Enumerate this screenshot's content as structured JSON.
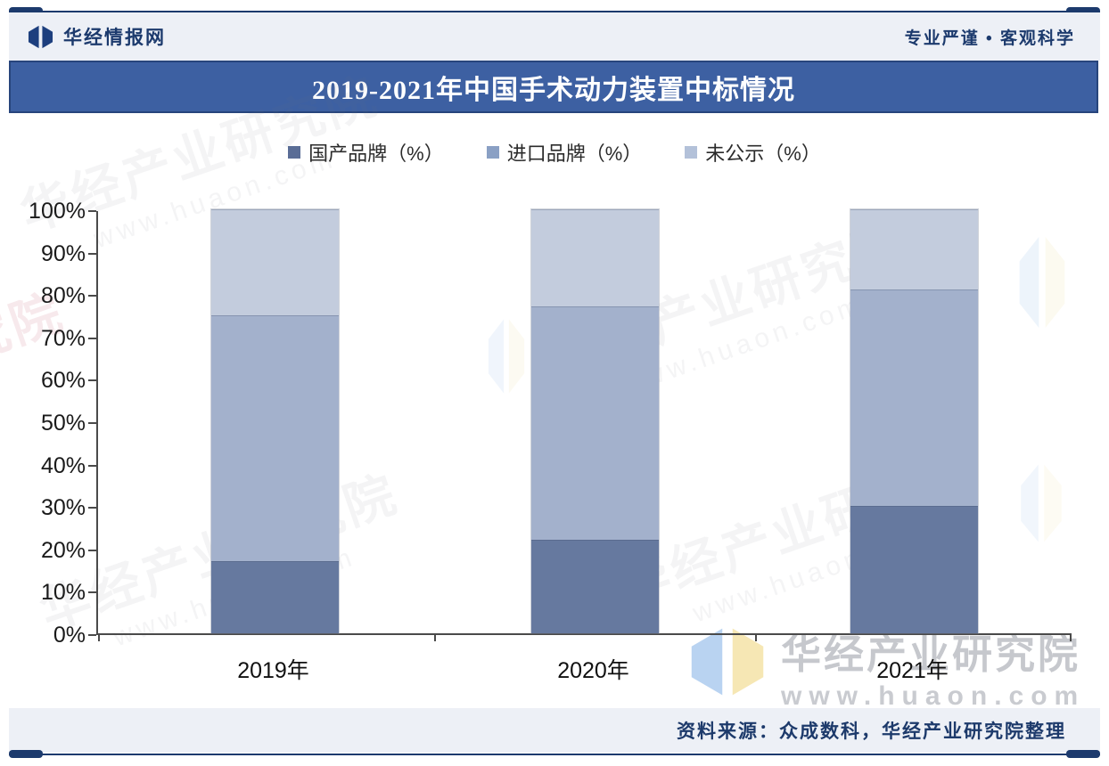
{
  "header": {
    "brand": "华经情报网",
    "tagline": "专业严谨 • 客观科学"
  },
  "chart_data": {
    "type": "bar",
    "stacked": true,
    "title": "2019-2021年中国手术动力装置中标情况",
    "categories": [
      "2019年",
      "2020年",
      "2021年"
    ],
    "series": [
      {
        "name": "国产品牌（%）",
        "color": "#66799f",
        "legend_color": "#5a6d96",
        "values": [
          17,
          22,
          30
        ]
      },
      {
        "name": "进口品牌（%）",
        "color": "#a3b1cc",
        "legend_color": "#8aa0c4",
        "values": [
          58,
          55,
          51
        ]
      },
      {
        "name": "未公示（%）",
        "color": "#c3ccdd",
        "legend_color": "#b3c1d9",
        "values": [
          25,
          23,
          19
        ]
      }
    ],
    "xlabel": "",
    "ylabel": "",
    "ylim": [
      0,
      100
    ],
    "ytick_labels": [
      "0%",
      "10%",
      "20%",
      "30%",
      "40%",
      "50%",
      "60%",
      "70%",
      "80%",
      "90%",
      "100%"
    ],
    "grid": false,
    "legend_position": "top"
  },
  "footer": {
    "source": "资料来源：众成数科，华经产业研究院整理"
  },
  "watermark": {
    "brand": "华经产业研究院",
    "url": "www.huaon.com",
    "tile_brand": "华经产业研究院",
    "tile_url": "www.huaon.com"
  },
  "colors": {
    "navy": "#1c3a6d",
    "title_bg": "#3d60a2",
    "title_border": "#27457c",
    "strip_bg": "#edf0f6",
    "axis": "#4a4a4a"
  }
}
